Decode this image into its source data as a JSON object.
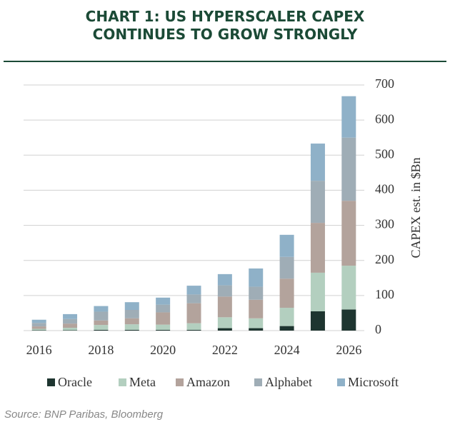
{
  "chart_data": {
    "type": "stacked-bar",
    "title": [
      "CHART 1: US HYPERSCALER CAPEX",
      "CONTINUES TO GROW STRONGLY"
    ],
    "y_label": "CAPEX est. in $Bn",
    "source": "Source: BNP Paribas, Bloomberg",
    "categories": [
      "2016",
      null,
      "2018",
      null,
      "2020",
      null,
      "2022",
      null,
      "2024",
      null,
      "2026"
    ],
    "series": [
      {
        "name": "Oracle",
        "color": "#1e3530",
        "values": [
          1,
          1,
          2,
          2,
          2,
          2,
          7,
          7,
          13,
          55,
          60
        ]
      },
      {
        "name": "Meta",
        "color": "#b3cfbf",
        "values": [
          4,
          7,
          14,
          16,
          15,
          19,
          31,
          28,
          52,
          110,
          125
        ]
      },
      {
        "name": "Amazon",
        "color": "#b3a39c",
        "values": [
          7,
          12,
          13,
          17,
          35,
          57,
          59,
          53,
          83,
          142,
          185
        ]
      },
      {
        "name": "Alphabet",
        "color": "#9fadb6",
        "values": [
          10,
          13,
          25,
          24,
          22,
          25,
          32,
          37,
          62,
          120,
          180
        ]
      },
      {
        "name": "Microsoft",
        "color": "#8fb1c8",
        "values": [
          9,
          14,
          16,
          22,
          20,
          25,
          32,
          52,
          63,
          106,
          118
        ]
      }
    ],
    "ylim": [
      0,
      700
    ],
    "yticks": [
      0,
      100,
      200,
      300,
      400,
      500,
      600,
      700
    ],
    "grid": true,
    "y_axis_side": "right",
    "legend": "bottom"
  }
}
